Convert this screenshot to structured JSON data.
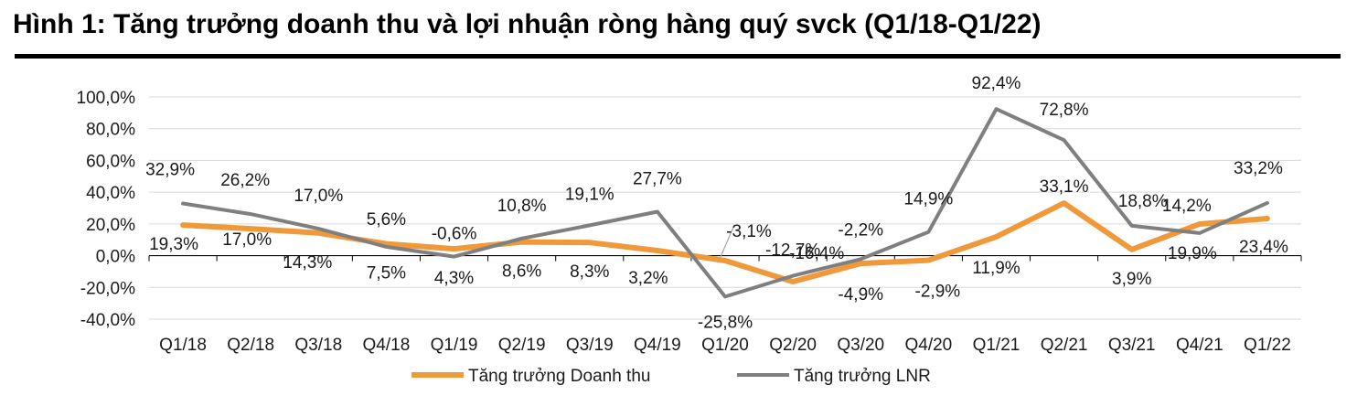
{
  "title": "Hình 1: Tăng trưởng doanh thu và lợi nhuận ròng hàng quý svck (Q1/18-Q1/22)",
  "chart_data": {
    "type": "line",
    "title": "Hình 1: Tăng trưởng doanh thu và lợi nhuận ròng hàng quý svck (Q1/18-Q1/22)",
    "categories": [
      "Q1/18",
      "Q2/18",
      "Q3/18",
      "Q4/18",
      "Q1/19",
      "Q2/19",
      "Q3/19",
      "Q4/19",
      "Q1/20",
      "Q2/20",
      "Q3/20",
      "Q4/20",
      "Q1/21",
      "Q2/21",
      "Q3/21",
      "Q4/21",
      "Q1/22"
    ],
    "y_ticks": [
      "100,0%",
      "80,0%",
      "60,0%",
      "40,0%",
      "20,0%",
      "0,0%",
      "-20,0%",
      "-40,0%"
    ],
    "ylim": [
      -40,
      100
    ],
    "grid": true,
    "legend_position": "bottom",
    "series": [
      {
        "name": "Tăng trưởng Doanh thu",
        "color": "#F0993A",
        "values": [
          19.3,
          17.0,
          14.3,
          7.5,
          4.3,
          8.6,
          8.3,
          3.2,
          -3.1,
          -16.4,
          -4.9,
          -2.9,
          11.9,
          33.1,
          3.9,
          19.9,
          23.4
        ],
        "labels": [
          "19,3%",
          "17,0%",
          "14,3%",
          "7,5%",
          "4,3%",
          "8,6%",
          "8,3%",
          "3,2%",
          "-3,1%",
          "-16,4%",
          "-4,9%",
          "-2,9%",
          "11,9%",
          "33,1%",
          "3,9%",
          "19,9%",
          "23,4%"
        ]
      },
      {
        "name": "Tăng trưởng LNR",
        "color": "#7F7F7F",
        "values": [
          32.9,
          26.2,
          17.0,
          5.6,
          -0.6,
          10.8,
          19.1,
          27.7,
          -25.8,
          -12.7,
          -2.2,
          14.9,
          92.4,
          72.8,
          18.8,
          14.2,
          33.2
        ],
        "labels": [
          "32,9%",
          "26,2%",
          "17,0%",
          "5,6%",
          "-0,6%",
          "10,8%",
          "19,1%",
          "27,7%",
          "-25,8%",
          "-12,7%",
          "-2,2%",
          "14,9%",
          "92,4%",
          "72,8%",
          "18,8%",
          "14,2%",
          "33,2%"
        ]
      }
    ]
  }
}
